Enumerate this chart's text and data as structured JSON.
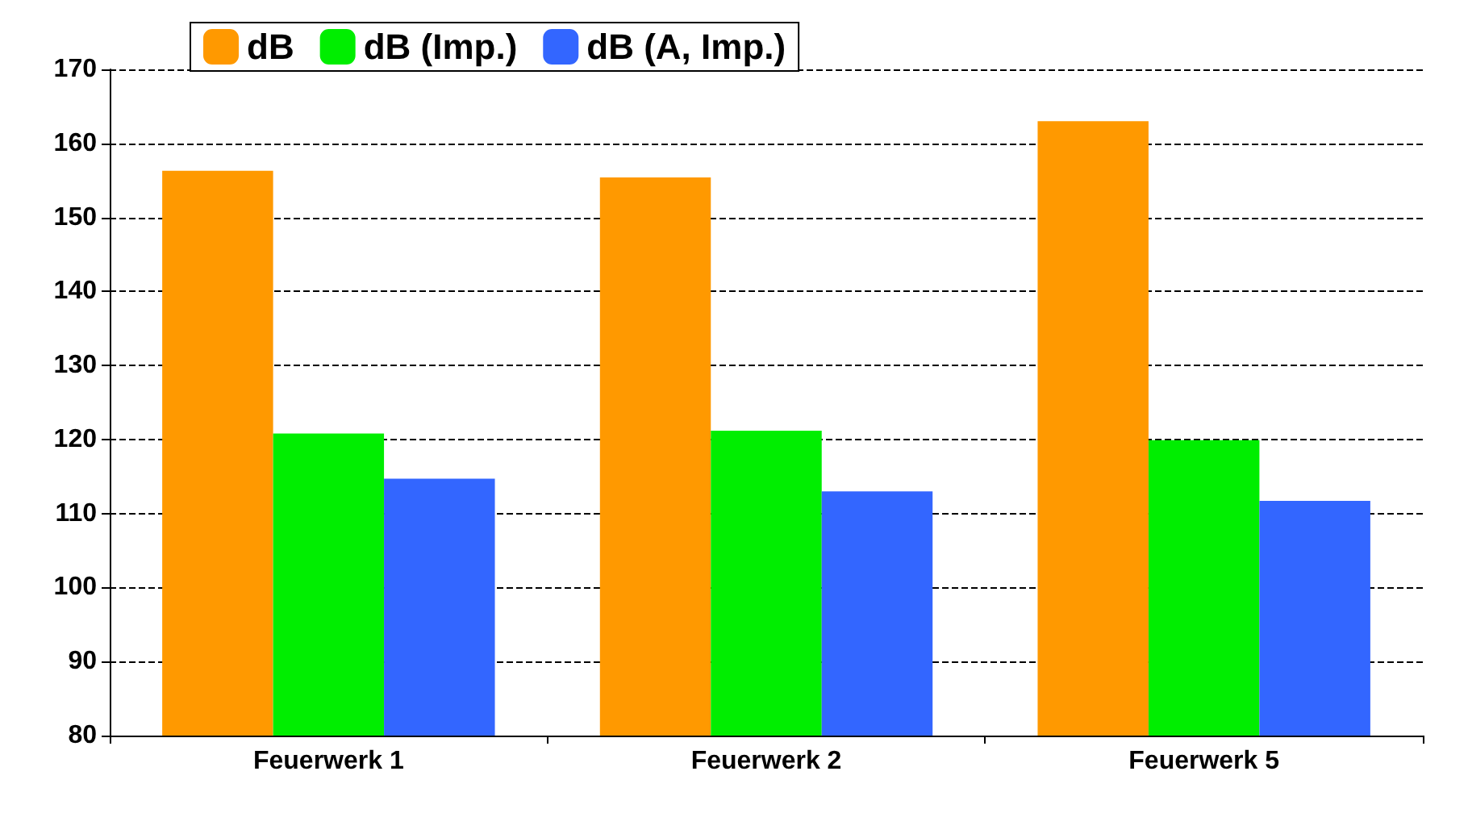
{
  "chart_data": {
    "type": "bar",
    "categories": [
      "Feuerwerk 1",
      "Feuerwerk 2",
      "Feuerwerk 5"
    ],
    "series": [
      {
        "name": "dB",
        "color": "#ff9900",
        "values": [
          156.3,
          155.4,
          163
        ]
      },
      {
        "name": "dB (Imp.)",
        "color": "#00ee00",
        "values": [
          120.8,
          121.2,
          119.9
        ]
      },
      {
        "name": "dB (A, Imp.)",
        "color": "#3366ff",
        "values": [
          114.7,
          113,
          111.7
        ]
      }
    ],
    "ylim": [
      80,
      170
    ],
    "yticks": [
      80,
      90,
      100,
      110,
      120,
      130,
      140,
      150,
      160,
      170
    ],
    "grid": "y",
    "legend": "top left"
  }
}
